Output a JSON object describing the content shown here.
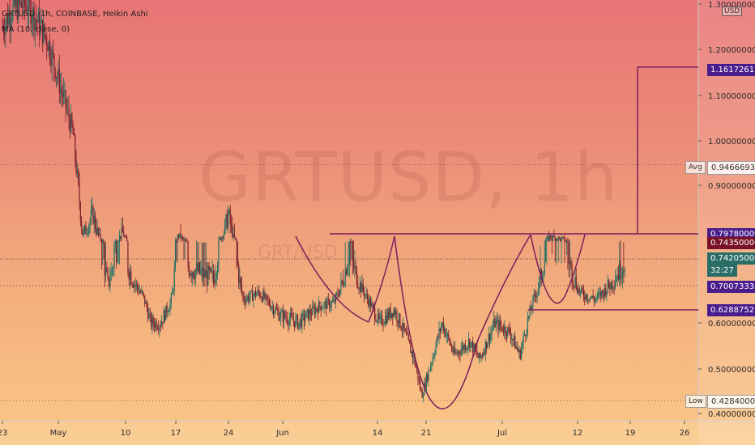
{
  "header": {
    "symbol_line": "GRTUSD, 1h, COINBASE, Heikin Ashi",
    "indicator_line": "MA (18, close, 0)"
  },
  "watermark": {
    "main": "GRTUSD, 1h",
    "sub": "GRT/USD"
  },
  "currency_badge": "USD",
  "colors": {
    "up": "#1f6f64",
    "down": "#7b1f2c",
    "pattern_line": "#7a1f5c",
    "label_purple": "#4a1d8c",
    "label_maroon": "#7a1227",
    "label_teal": "#2a6d66"
  },
  "avg_label": "Avg",
  "low_label": "Low",
  "price_labels": [
    {
      "value": "1.16172615",
      "style": "purple"
    },
    {
      "value": "0.94666930",
      "style": "plain"
    },
    {
      "value": "0.79780000",
      "style": "purple"
    },
    {
      "value": "0.74350000",
      "style": "maroon"
    },
    {
      "value": "0.74205000",
      "style": "teal"
    },
    {
      "value": "32:27",
      "style": "teal"
    },
    {
      "value": "0.70073333",
      "style": "purple"
    },
    {
      "value": "0.62887529",
      "style": "purple"
    },
    {
      "value": "0.42840000",
      "style": "plain"
    }
  ],
  "chart_data": {
    "type": "candlestick",
    "title": "GRTUSD, 1h, COINBASE, Heikin Ashi",
    "y_ticks": [
      "1.30000000",
      "1.20000000",
      "1.10000000",
      "1.00000000",
      "0.90000000",
      "0.60000000",
      "0.50000000",
      "0.40000000"
    ],
    "y_range": [
      0.39,
      1.32
    ],
    "x_ticks": [
      "23",
      "May",
      "10",
      "17",
      "24",
      "Jun",
      "14",
      "21",
      "Jul",
      "12",
      "19",
      "26"
    ],
    "resistance": 0.7978,
    "support": 0.62887529,
    "target": 1.16172615,
    "average": 0.9466693,
    "low": 0.4284,
    "last_close": 0.74205,
    "price_path": [
      {
        "t": 0,
        "p": 1.25
      },
      {
        "t": 0.04,
        "p": 1.29
      },
      {
        "t": 0.1,
        "p": 1.3
      },
      {
        "t": 0.18,
        "p": 1.22
      },
      {
        "t": 0.28,
        "p": 1.02
      },
      {
        "t": 0.32,
        "p": 0.79
      },
      {
        "t": 0.36,
        "p": 0.84
      },
      {
        "t": 0.42,
        "p": 0.7
      },
      {
        "t": 0.48,
        "p": 0.8
      },
      {
        "t": 0.5,
        "p": 0.73
      },
      {
        "t": 0.56,
        "p": 0.67
      },
      {
        "t": 0.59,
        "p": 0.6
      },
      {
        "t": 0.63,
        "p": 0.6
      },
      {
        "t": 0.67,
        "p": 0.65
      },
      {
        "t": 0.7,
        "p": 0.79
      },
      {
        "t": 0.74,
        "p": 0.73
      },
      {
        "t": 0.79,
        "p": 0.72
      },
      {
        "t": 0.84,
        "p": 0.71
      },
      {
        "t": 0.9,
        "p": 0.84
      },
      {
        "t": 0.96,
        "p": 0.66
      },
      {
        "t": 1.02,
        "p": 0.68
      },
      {
        "t": 1.1,
        "p": 0.62
      },
      {
        "t": 1.18,
        "p": 0.6
      },
      {
        "t": 1.26,
        "p": 0.64
      },
      {
        "t": 1.32,
        "p": 0.65
      },
      {
        "t": 1.38,
        "p": 0.75
      },
      {
        "t": 1.44,
        "p": 0.68
      },
      {
        "t": 1.5,
        "p": 0.6
      },
      {
        "t": 1.56,
        "p": 0.63
      },
      {
        "t": 1.6,
        "p": 0.58
      },
      {
        "t": 1.64,
        "p": 0.52
      },
      {
        "t": 1.67,
        "p": 0.44
      },
      {
        "t": 1.7,
        "p": 0.5
      },
      {
        "t": 1.75,
        "p": 0.6
      },
      {
        "t": 1.8,
        "p": 0.53
      },
      {
        "t": 1.86,
        "p": 0.56
      },
      {
        "t": 1.9,
        "p": 0.52
      },
      {
        "t": 1.96,
        "p": 0.6
      },
      {
        "t": 2.02,
        "p": 0.58
      },
      {
        "t": 2.06,
        "p": 0.53
      },
      {
        "t": 2.12,
        "p": 0.67
      },
      {
        "t": 2.18,
        "p": 0.78
      },
      {
        "t": 2.24,
        "p": 0.76
      },
      {
        "t": 2.3,
        "p": 0.68
      },
      {
        "t": 2.36,
        "p": 0.66
      },
      {
        "t": 2.42,
        "p": 0.7
      },
      {
        "t": 2.48,
        "p": 0.74
      }
    ]
  }
}
